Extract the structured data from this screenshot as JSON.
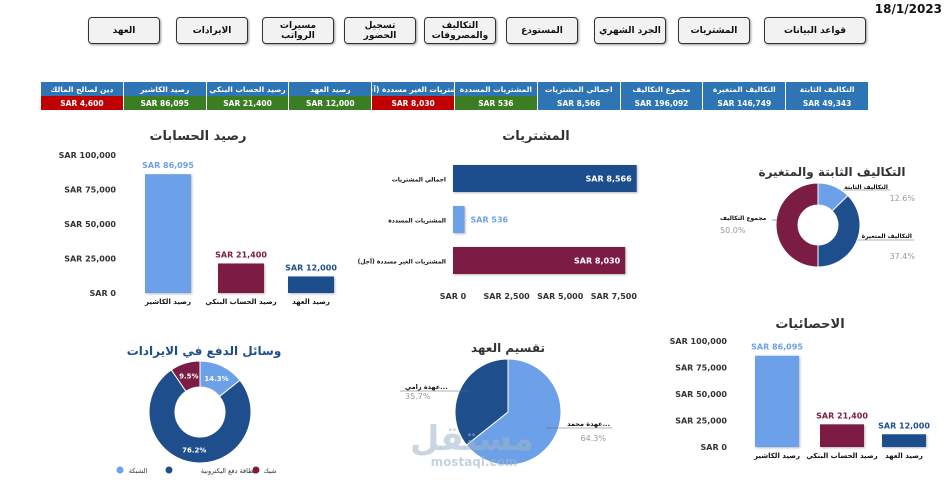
{
  "date": "18/1/2023",
  "nav": [
    {
      "label": "العهد",
      "name": "nav-custody"
    },
    {
      "label": "الايرادات",
      "name": "nav-revenue"
    },
    {
      "label": "مسيرات الرواتب",
      "name": "nav-payroll"
    },
    {
      "label": "تسجيل الحضور",
      "name": "nav-attendance"
    },
    {
      "label": "التكاليف والمصروفات",
      "name": "nav-costs"
    },
    {
      "label": "المستودع",
      "name": "nav-warehouse"
    },
    {
      "label": "الجرد الشهري",
      "name": "nav-monthly-inventory"
    },
    {
      "label": "المشتريات",
      "name": "nav-purchases"
    },
    {
      "label": "قواعد البيانات",
      "name": "nav-databases"
    }
  ],
  "kpis": [
    {
      "label": "التكاليف الثابتة",
      "value": "SAR 49,343",
      "color": "blue"
    },
    {
      "label": "التكاليف المتغيرة",
      "value": "SAR 146,749",
      "color": "blue"
    },
    {
      "label": "مجموع التكاليف",
      "value": "SAR 196,092",
      "color": "blue"
    },
    {
      "label": "اجمالي المشتريات",
      "value": "SAR 8,566",
      "color": "blue"
    },
    {
      "label": "المشتريات المسددة",
      "value": "SAR 536",
      "color": "green"
    },
    {
      "label": "المشتريات الغير مسددة (آجل)",
      "value": "SAR 8,030",
      "color": "red"
    },
    {
      "label": "رصيد العهد",
      "value": "SAR 12,000",
      "color": "green"
    },
    {
      "label": "رصيد الحساب البنكي",
      "value": "SAR 21,400",
      "color": "green"
    },
    {
      "label": "رصيد الكاشير",
      "value": "SAR 86,095",
      "color": "green"
    },
    {
      "label": "دين لصالح المالك",
      "value": "SAR 4,600",
      "color": "red"
    }
  ],
  "colors": {
    "light_blue": "#6ca0e8",
    "dark_blue": "#1f4e8c",
    "maroon": "#7b1c45",
    "green": "#3a7d22",
    "red": "#c00000",
    "header_blue": "#2e75b6"
  },
  "watermark": {
    "brand": "مستقل",
    "url": "mostaql.com"
  },
  "chart_data": [
    {
      "id": "balances",
      "type": "bar",
      "title": "رصيد الحسابات",
      "categories": [
        "رصيد الكاشير",
        "رصيد الحساب البنكي",
        "رصيد العهد"
      ],
      "values": [
        86095,
        21400,
        12000
      ],
      "value_labels": [
        "SAR 86,095",
        "SAR 21,400",
        "SAR 12,000"
      ],
      "colors": [
        "#6ca0e8",
        "#7b1c45",
        "#1f4e8c"
      ],
      "yticks": [
        "SAR 0",
        "SAR 25,000",
        "SAR 50,000",
        "SAR 75,000",
        "SAR 100,000"
      ],
      "ylim": [
        0,
        100000
      ]
    },
    {
      "id": "purchases",
      "type": "bar",
      "orientation": "horizontal",
      "title": "المشتريات",
      "categories": [
        "اجمالي المشتريات",
        "المشتريات المسددة",
        "المشتريات الغير مسددة (آجل)"
      ],
      "values": [
        8566,
        536,
        8030
      ],
      "value_labels": [
        "SAR 8,566",
        "SAR 536",
        "SAR 8,030"
      ],
      "colors": [
        "#1f4e8c",
        "#6ca0e8",
        "#7b1c45"
      ],
      "xticks": [
        "SAR 0",
        "SAR 2,500",
        "SAR 5,000",
        "SAR 7,500"
      ],
      "xlim": [
        0,
        9000
      ]
    },
    {
      "id": "fixed-variable",
      "type": "pie",
      "title": "التكاليف الثابتة والمتغيرة",
      "slices": [
        {
          "label": "التكاليف الثابتة",
          "value": 12.6,
          "pct": "12.6%",
          "color": "#6ca0e8"
        },
        {
          "label": "التكاليف المتغيرة",
          "value": 37.4,
          "pct": "37.4%",
          "color": "#1f4e8c"
        },
        {
          "label": "مجموع التكاليف",
          "value": 50.0,
          "pct": "50.0%",
          "color": "#7b1c45"
        }
      ]
    },
    {
      "id": "stats",
      "type": "bar",
      "title": "الاحصائيات",
      "categories": [
        "رصيد الكاشير",
        "رصيد الحساب البنكي",
        "رصيد العهد"
      ],
      "values": [
        86095,
        21400,
        12000
      ],
      "value_labels": [
        "SAR 86,095",
        "SAR 21,400",
        "SAR 12,000"
      ],
      "colors": [
        "#6ca0e8",
        "#7b1c45",
        "#1f4e8c"
      ],
      "yticks": [
        "SAR 0",
        "SAR 25,000",
        "SAR 50,000",
        "SAR 75,000",
        "SAR 100,000"
      ],
      "ylim": [
        0,
        100000
      ]
    },
    {
      "id": "payment-methods",
      "type": "pie",
      "title": "وسائل الدفع في الايرادات",
      "slices": [
        {
          "label": "الشبكة",
          "value": 14.3,
          "pct": "14.3%",
          "color": "#6ca0e8"
        },
        {
          "label": "بطاقة دفع اليكترونية",
          "value": 76.2,
          "pct": "76.2%",
          "color": "#1f4e8c"
        },
        {
          "label": "شيك",
          "value": 9.5,
          "pct": "9.5%",
          "color": "#7b1c45"
        }
      ],
      "legend": "bottom"
    },
    {
      "id": "custody",
      "type": "pie",
      "title": "تقسيم العهد",
      "slices": [
        {
          "label": "عهدة محمد...",
          "value": 64.3,
          "pct": "64.3%",
          "color": "#6ca0e8"
        },
        {
          "label": "عهدة رامي...",
          "value": 35.7,
          "pct": "35.7%",
          "color": "#1f4e8c"
        }
      ]
    }
  ]
}
